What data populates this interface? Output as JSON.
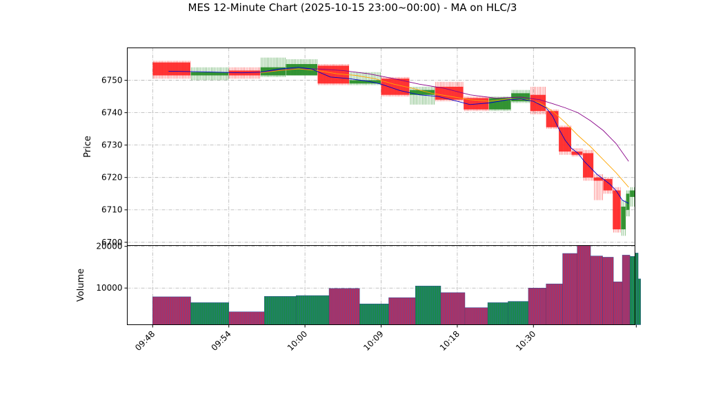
{
  "title": "MES 12-Minute Chart (2025-10-15 23:00~00:00) - MA on HLC/3",
  "colors": {
    "up": "#228B22",
    "down": "#ff2222",
    "ma_fast": "#0000cc",
    "ma_mid": "#ffa500",
    "ma_slow": "#880088",
    "volume_up": "#1a8a4a",
    "volume_down": "#b03060",
    "grid": "#b0b0b0"
  },
  "chart_data": [
    {
      "type": "candlestick",
      "ylabel": "Price",
      "ylim": [
        6699,
        6760
      ],
      "yticks": [
        6700,
        6710,
        6720,
        6730,
        6740,
        6750
      ],
      "grid": true,
      "time_ticks": [
        "09:48",
        "09:54",
        "10:00",
        "10:09",
        "10:18",
        "10:30"
      ],
      "tick_index": [
        0,
        12,
        24,
        36,
        48,
        60
      ],
      "x_range": [
        -4,
        76
      ],
      "candles": [
        {
          "i": 0,
          "open": 6755.5,
          "high": 6756,
          "low": 6750.5,
          "close": 6751.5
        },
        {
          "i": 6,
          "open": 6751.5,
          "high": 6754,
          "low": 6750,
          "close": 6752.5
        },
        {
          "i": 12,
          "open": 6753,
          "high": 6754,
          "low": 6750.5,
          "close": 6751.5
        },
        {
          "i": 17,
          "open": 6751.5,
          "high": 6757,
          "low": 6751,
          "close": 6754
        },
        {
          "i": 21,
          "open": 6751.5,
          "high": 6756.5,
          "low": 6751.5,
          "close": 6755
        },
        {
          "i": 26,
          "open": 6754.5,
          "high": 6755,
          "low": 6748.5,
          "close": 6749
        },
        {
          "i": 31,
          "open": 6749,
          "high": 6752.5,
          "low": 6748.5,
          "close": 6750
        },
        {
          "i": 36,
          "open": 6750.5,
          "high": 6751,
          "low": 6745,
          "close": 6745.5
        },
        {
          "i": 40.5,
          "open": 6745.5,
          "high": 6748,
          "low": 6742.5,
          "close": 6747
        },
        {
          "i": 44.5,
          "open": 6748,
          "high": 6749.5,
          "low": 6743.5,
          "close": 6744
        },
        {
          "i": 49,
          "open": 6744.5,
          "high": 6745,
          "low": 6740.5,
          "close": 6741
        },
        {
          "i": 53,
          "open": 6741,
          "high": 6745,
          "low": 6740.5,
          "close": 6744.5
        },
        {
          "i": 56.5,
          "open": 6743.5,
          "high": 6747,
          "low": 6743,
          "close": 6746
        },
        {
          "i": 59.5,
          "open": 6745.5,
          "high": 6748,
          "low": 6739.5,
          "close": 6740.5
        },
        {
          "i": 62,
          "open": 6740.5,
          "high": 6741,
          "low": 6735,
          "close": 6735.5
        },
        {
          "i": 64,
          "open": 6735.5,
          "high": 6736,
          "low": 6727,
          "close": 6728
        },
        {
          "i": 66,
          "open": 6728,
          "high": 6729,
          "low": 6726.5,
          "close": 6727
        },
        {
          "i": 67.8,
          "open": 6727.5,
          "high": 6728.5,
          "low": 6719,
          "close": 6720
        },
        {
          "i": 69.5,
          "open": 6720,
          "high": 6721,
          "low": 6713,
          "close": 6719
        },
        {
          "i": 71,
          "open": 6719.5,
          "high": 6720,
          "low": 6715,
          "close": 6716
        },
        {
          "i": 72.5,
          "open": 6716,
          "high": 6717,
          "low": 6703,
          "close": 6704
        },
        {
          "i": 73.8,
          "open": 6704,
          "high": 6713,
          "low": 6702,
          "close": 6711
        },
        {
          "i": 74.6,
          "open": 6710,
          "high": 6716,
          "low": 6708,
          "close": 6715
        },
        {
          "i": 75.2,
          "open": 6714,
          "high": 6717,
          "low": 6711,
          "close": 6716
        }
      ],
      "ma_fast": [
        [
          2.5,
          6752.8
        ],
        [
          8,
          6752.6
        ],
        [
          14,
          6752.3
        ],
        [
          17,
          6752.5
        ],
        [
          20,
          6753.5
        ],
        [
          23,
          6754
        ],
        [
          25,
          6753.5
        ],
        [
          28,
          6751
        ],
        [
          31,
          6750.5
        ],
        [
          34,
          6749.7
        ],
        [
          36,
          6748.8
        ],
        [
          39,
          6746.8
        ],
        [
          42,
          6745.5
        ],
        [
          45,
          6745
        ],
        [
          48,
          6743.5
        ],
        [
          50,
          6742.5
        ],
        [
          53,
          6743
        ],
        [
          56,
          6744
        ],
        [
          58,
          6744.2
        ],
        [
          60,
          6743.5
        ],
        [
          62,
          6741.5
        ],
        [
          63,
          6739
        ],
        [
          64,
          6735
        ],
        [
          65,
          6731.5
        ],
        [
          66,
          6729
        ],
        [
          67,
          6727.5
        ],
        [
          68,
          6725
        ],
        [
          69,
          6723
        ],
        [
          70,
          6721
        ],
        [
          71,
          6719.5
        ],
        [
          72,
          6718
        ],
        [
          73,
          6716
        ],
        [
          74,
          6713
        ],
        [
          75,
          6712
        ]
      ],
      "ma_mid": [
        [
          17,
          6752.3
        ],
        [
          20,
          6753
        ],
        [
          23,
          6753.5
        ],
        [
          26,
          6753
        ],
        [
          29,
          6752
        ],
        [
          32,
          6751.5
        ],
        [
          35,
          6750.5
        ],
        [
          38,
          6748.8
        ],
        [
          41,
          6747.5
        ],
        [
          44,
          6746
        ],
        [
          47,
          6745
        ],
        [
          50,
          6744
        ],
        [
          53,
          6743.5
        ],
        [
          56,
          6744.2
        ],
        [
          59,
          6744
        ],
        [
          61,
          6743
        ],
        [
          63,
          6740.5
        ],
        [
          65,
          6737
        ],
        [
          67,
          6733
        ],
        [
          69,
          6729.5
        ],
        [
          71,
          6725.5
        ],
        [
          73,
          6721.5
        ],
        [
          75,
          6717
        ]
      ],
      "ma_slow": [
        [
          17,
          6752.5
        ],
        [
          22,
          6753.5
        ],
        [
          26,
          6753.5
        ],
        [
          30,
          6753
        ],
        [
          34,
          6752
        ],
        [
          38,
          6750.5
        ],
        [
          42,
          6748.8
        ],
        [
          46,
          6747.5
        ],
        [
          50,
          6745.5
        ],
        [
          54,
          6744.5
        ],
        [
          58,
          6744.8
        ],
        [
          61,
          6744
        ],
        [
          63,
          6742.8
        ],
        [
          65,
          6741.5
        ],
        [
          67,
          6740
        ],
        [
          69,
          6737.5
        ],
        [
          71,
          6734.5
        ],
        [
          73,
          6730.5
        ],
        [
          75,
          6725
        ]
      ]
    },
    {
      "type": "bar",
      "ylabel": "Volume",
      "ylim": [
        1200,
        20200
      ],
      "yticks": [
        10000,
        20000
      ],
      "grid": true,
      "bars": [
        {
          "i": 0,
          "w": 6,
          "v": 7900,
          "dir": "down"
        },
        {
          "i": 6,
          "w": 6,
          "v": 6500,
          "dir": "up"
        },
        {
          "i": 12,
          "w": 5.6,
          "v": 4300,
          "dir": "down"
        },
        {
          "i": 17.6,
          "w": 5,
          "v": 8000,
          "dir": "up"
        },
        {
          "i": 22.6,
          "w": 5.2,
          "v": 8200,
          "dir": "up"
        },
        {
          "i": 27.8,
          "w": 4.8,
          "v": 9900,
          "dir": "down"
        },
        {
          "i": 32.6,
          "w": 4.6,
          "v": 6200,
          "dir": "up"
        },
        {
          "i": 37.2,
          "w": 4.2,
          "v": 7700,
          "dir": "down"
        },
        {
          "i": 41.4,
          "w": 4,
          "v": 10500,
          "dir": "up"
        },
        {
          "i": 45.4,
          "w": 3.8,
          "v": 8900,
          "dir": "down"
        },
        {
          "i": 49.2,
          "w": 3.6,
          "v": 5300,
          "dir": "down"
        },
        {
          "i": 52.8,
          "w": 3.2,
          "v": 6500,
          "dir": "up"
        },
        {
          "i": 56,
          "w": 3.2,
          "v": 6800,
          "dir": "up"
        },
        {
          "i": 59.2,
          "w": 2.8,
          "v": 10000,
          "dir": "down"
        },
        {
          "i": 62,
          "w": 2.6,
          "v": 11000,
          "dir": "down"
        },
        {
          "i": 64.6,
          "w": 2.3,
          "v": 18300,
          "dir": "down"
        },
        {
          "i": 66.9,
          "w": 2.1,
          "v": 20200,
          "dir": "down"
        },
        {
          "i": 69,
          "w": 1.9,
          "v": 17700,
          "dir": "down"
        },
        {
          "i": 70.9,
          "w": 1.7,
          "v": 17400,
          "dir": "down"
        },
        {
          "i": 72.6,
          "w": 1.4,
          "v": 11500,
          "dir": "down"
        },
        {
          "i": 74,
          "w": 1.2,
          "v": 17900,
          "dir": "down"
        },
        {
          "i": 75.2,
          "w": 0.8,
          "v": 17600,
          "dir": "up"
        },
        {
          "i": 76,
          "w": 0.5,
          "v": 18400,
          "dir": "up"
        },
        {
          "i": 76.5,
          "w": 0.4,
          "v": 12200,
          "dir": "up"
        }
      ]
    }
  ]
}
